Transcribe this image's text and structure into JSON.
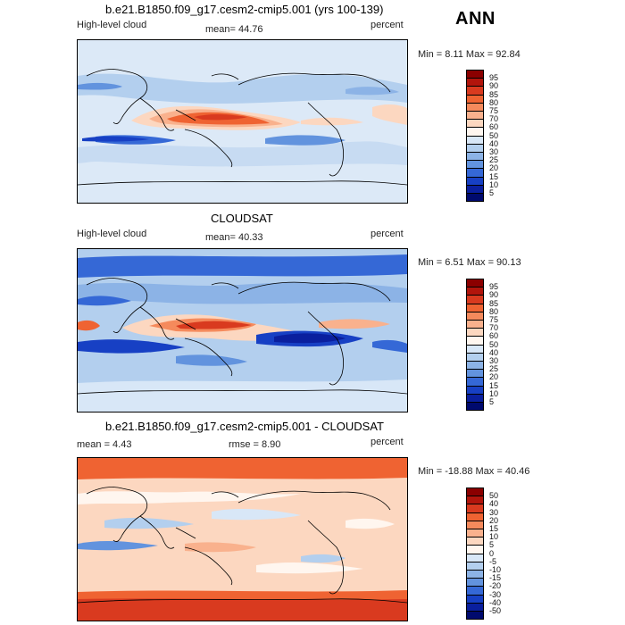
{
  "season": "ANN",
  "panels": [
    {
      "title": "b.e21.B1850.f09_g17.cesm2-cmip5.001 (yrs 100-139)",
      "left_label": "High-level cloud",
      "center_label": "mean=  44.76",
      "right_label": "percent",
      "minmax": "Min =   8.11  Max =  92.84"
    },
    {
      "title": "CLOUDSAT",
      "left_label": "High-level cloud",
      "center_label": "mean=  40.33",
      "right_label": "percent",
      "minmax": "Min =   6.51  Max =  90.13"
    },
    {
      "title": "b.e21.B1850.f09_g17.cesm2-cmip5.001 - CLOUDSAT",
      "left_label": "mean =    4.43",
      "center_label": "rmse =    8.90",
      "right_label": "percent",
      "minmax": "Min = -18.88  Max =  40.46"
    }
  ],
  "colorbars": {
    "abs": {
      "labels": [
        "95",
        "90",
        "85",
        "80",
        "75",
        "70",
        "60",
        "50",
        "40",
        "30",
        "25",
        "20",
        "15",
        "10",
        "5"
      ],
      "colors": [
        "#8b0000",
        "#b2150c",
        "#d93a1f",
        "#ef6332",
        "#f58a5c",
        "#f9b18d",
        "#fcd7c0",
        "#fff6ef",
        "#d8e7f7",
        "#b3cfee",
        "#8cb3e6",
        "#6293de",
        "#3568d6",
        "#1740c4",
        "#0a1f9e",
        "#000a6e"
      ]
    },
    "diff": {
      "labels": [
        "50",
        "40",
        "30",
        "20",
        "15",
        "10",
        "5",
        "0",
        "-5",
        "-10",
        "-15",
        "-20",
        "-30",
        "-40",
        "-50"
      ],
      "colors": [
        "#8b0000",
        "#b2150c",
        "#d93a1f",
        "#ef6332",
        "#f58a5c",
        "#f9b18d",
        "#fcd7c0",
        "#fff6ef",
        "#d8e7f7",
        "#b3cfee",
        "#8cb3e6",
        "#6293de",
        "#3568d6",
        "#1740c4",
        "#0a1f9e",
        "#000a6e"
      ]
    }
  }
}
